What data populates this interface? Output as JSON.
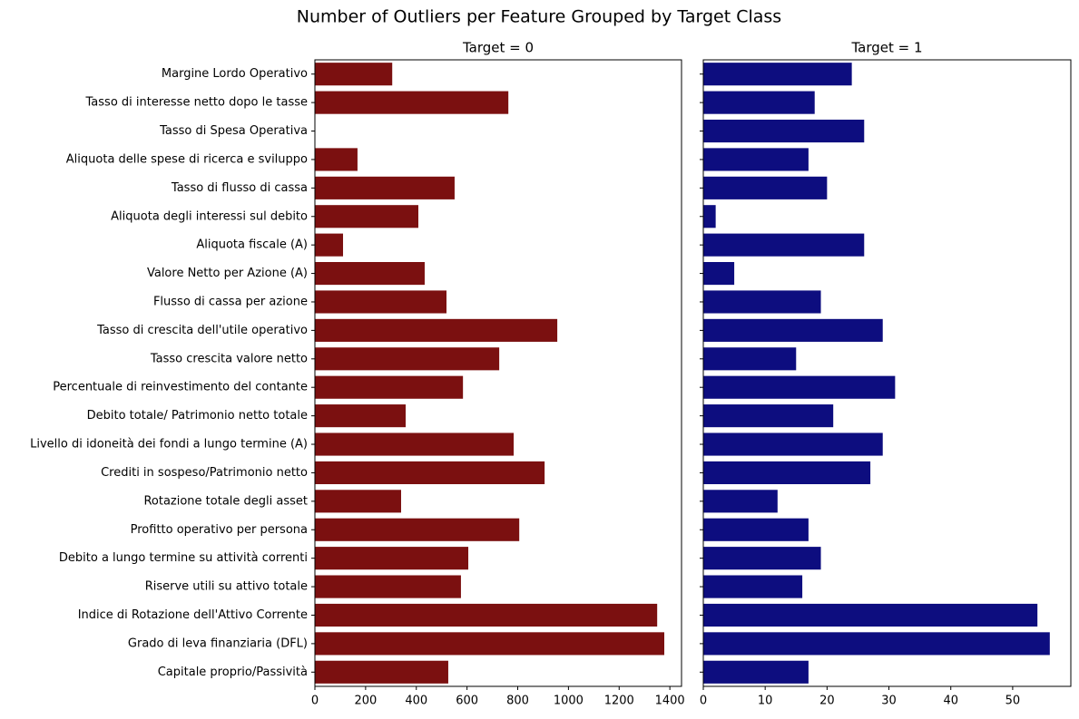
{
  "title": "Number of Outliers per Feature Grouped by Target Class",
  "chart_data": [
    {
      "type": "barh",
      "title": "Target = 0",
      "color": "#7b1010",
      "categories": [
        "Margine Lordo Operativo",
        "Tasso di interesse netto dopo le tasse",
        "Tasso di Spesa Operativa",
        "Aliquota delle spese di ricerca e sviluppo",
        "Tasso di flusso di cassa",
        "Aliquota degli interessi sul debito",
        "Aliquota fiscale (A)",
        "Valore Netto per Azione (A)",
        "Flusso di cassa per azione",
        "Tasso di crescita dell'utile operativo",
        "Tasso crescita valore netto",
        "Percentuale di reinvestimento del contante",
        "Debito totale/ Patrimonio netto totale",
        "Livello di idoneità dei fondi a lungo termine (A)",
        "Crediti in sospeso/Patrimonio netto",
        "Rotazione totale degli asset",
        "Profitto operativo per persona",
        "Debito a lungo termine su attività correnti",
        "Riserve utili su attivo totale",
        "Indice di Rotazione dell'Attivo Corrente",
        "Grado di leva finanziaria (DFL)",
        "Capitale proprio/Passività"
      ],
      "values": [
        305,
        763,
        0,
        168,
        551,
        408,
        111,
        433,
        519,
        956,
        727,
        584,
        358,
        784,
        906,
        340,
        806,
        605,
        576,
        1350,
        1378,
        526
      ],
      "xlim": [
        0,
        1446
      ],
      "xticks": [
        0,
        200,
        400,
        600,
        800,
        1000,
        1200,
        1400
      ]
    },
    {
      "type": "barh",
      "title": "Target = 1",
      "color": "#0d0d7f",
      "values": [
        24,
        18,
        26,
        17,
        20,
        2,
        26,
        5,
        19,
        29,
        15,
        31,
        21,
        29,
        27,
        12,
        17,
        19,
        16,
        54,
        56,
        17
      ],
      "xlim": [
        0,
        59.4
      ],
      "xticks": [
        0,
        10,
        20,
        30,
        40,
        50
      ]
    }
  ]
}
